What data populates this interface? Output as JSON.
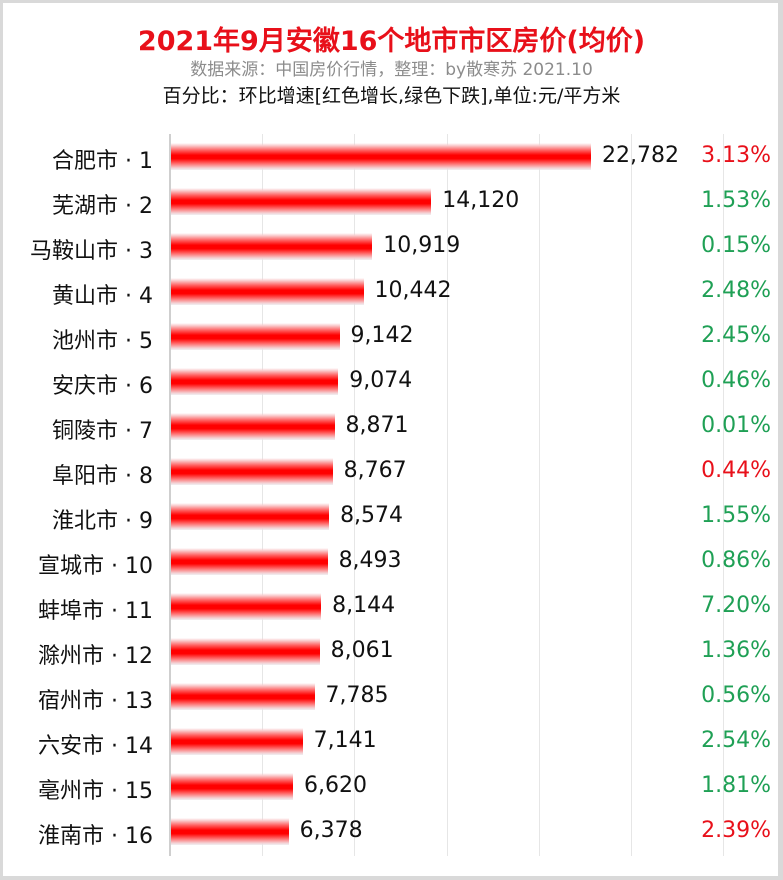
{
  "header": {
    "title": "2021年9月安徽16个地市市区房价(均价)",
    "subtitle": "数据来源：中国房价行情，整理：by散寒苏 2021.10",
    "note": "百分比：环比增速[红色增长,绿色下跌],单位:元/平方米"
  },
  "colors": {
    "title": "#e8101a",
    "bar": "#ff0000",
    "increase": "#e8101a",
    "decrease": "#1fa055",
    "gridline": "#e6e6e6"
  },
  "chart_data": {
    "type": "bar",
    "orientation": "horizontal",
    "title": "2021年9月安徽16个地市市区房价(均价)",
    "subtitle": "数据来源：中国房价行情，整理：by散寒苏 2021.10",
    "annotation": "百分比：环比增速[红色增长,绿色下跌],单位:元/平方米",
    "xlabel": "",
    "ylabel": "",
    "unit": "元/平方米",
    "xlim": [
      0,
      33000
    ],
    "grid": true,
    "gridline_step": 5000,
    "legend": "none",
    "categories": [
      "合肥市 · 1",
      "芜湖市 · 2",
      "马鞍山市 · 3",
      "黄山市 · 4",
      "池州市 · 5",
      "安庆市 · 6",
      "铜陵市 · 7",
      "阜阳市 · 8",
      "淮北市 · 9",
      "宣城市 · 10",
      "蚌埠市 · 11",
      "滁州市 · 12",
      "宿州市 · 13",
      "六安市 · 14",
      "亳州市 · 15",
      "淮南市 · 16"
    ],
    "values": [
      22782,
      14120,
      10919,
      10442,
      9142,
      9074,
      8871,
      8767,
      8574,
      8493,
      8144,
      8061,
      7785,
      7141,
      6620,
      6378
    ],
    "value_labels": [
      "22,782",
      "14,120",
      "10,919",
      "10,442",
      "9,142",
      "9,074",
      "8,871",
      "8,767",
      "8,574",
      "8,493",
      "8,144",
      "8,061",
      "7,785",
      "7,141",
      "6,620",
      "6,378"
    ],
    "mom_change": [
      "3.13%",
      "1.53%",
      "0.15%",
      "2.48%",
      "2.45%",
      "0.46%",
      "0.01%",
      "0.44%",
      "1.55%",
      "0.86%",
      "7.20%",
      "1.36%",
      "0.56%",
      "2.54%",
      "1.81%",
      "2.39%"
    ],
    "mom_direction": [
      "up",
      "down",
      "down",
      "down",
      "down",
      "down",
      "down",
      "up",
      "down",
      "down",
      "down",
      "down",
      "down",
      "down",
      "down",
      "up"
    ]
  },
  "rows": [
    {
      "label": "合肥市 · 1",
      "value": 22782,
      "value_label": "22,782",
      "pct": "3.13%",
      "dir": "up"
    },
    {
      "label": "芜湖市 · 2",
      "value": 14120,
      "value_label": "14,120",
      "pct": "1.53%",
      "dir": "down"
    },
    {
      "label": "马鞍山市 · 3",
      "value": 10919,
      "value_label": "10,919",
      "pct": "0.15%",
      "dir": "down"
    },
    {
      "label": "黄山市 · 4",
      "value": 10442,
      "value_label": "10,442",
      "pct": "2.48%",
      "dir": "down"
    },
    {
      "label": "池州市 · 5",
      "value": 9142,
      "value_label": "9,142",
      "pct": "2.45%",
      "dir": "down"
    },
    {
      "label": "安庆市 · 6",
      "value": 9074,
      "value_label": "9,074",
      "pct": "0.46%",
      "dir": "down"
    },
    {
      "label": "铜陵市 · 7",
      "value": 8871,
      "value_label": "8,871",
      "pct": "0.01%",
      "dir": "down"
    },
    {
      "label": "阜阳市 · 8",
      "value": 8767,
      "value_label": "8,767",
      "pct": "0.44%",
      "dir": "up"
    },
    {
      "label": "淮北市 · 9",
      "value": 8574,
      "value_label": "8,574",
      "pct": "1.55%",
      "dir": "down"
    },
    {
      "label": "宣城市 · 10",
      "value": 8493,
      "value_label": "8,493",
      "pct": "0.86%",
      "dir": "down"
    },
    {
      "label": "蚌埠市 · 11",
      "value": 8144,
      "value_label": "8,144",
      "pct": "7.20%",
      "dir": "down"
    },
    {
      "label": "滁州市 · 12",
      "value": 8061,
      "value_label": "8,061",
      "pct": "1.36%",
      "dir": "down"
    },
    {
      "label": "宿州市 · 13",
      "value": 7785,
      "value_label": "7,785",
      "pct": "0.56%",
      "dir": "down"
    },
    {
      "label": "六安市 · 14",
      "value": 7141,
      "value_label": "7,141",
      "pct": "2.54%",
      "dir": "down"
    },
    {
      "label": "亳州市 · 15",
      "value": 6620,
      "value_label": "6,620",
      "pct": "1.81%",
      "dir": "down"
    },
    {
      "label": "淮南市 · 16",
      "value": 6378,
      "value_label": "6,378",
      "pct": "2.39%",
      "dir": "up"
    }
  ]
}
